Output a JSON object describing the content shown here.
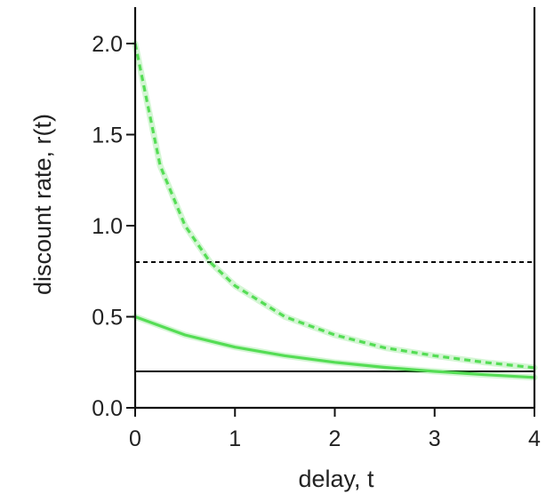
{
  "chart_data": {
    "type": "line",
    "title": "",
    "xlabel": "delay, t",
    "ylabel": "discount rate, r(t)",
    "xlim": [
      0,
      4
    ],
    "ylim": [
      0,
      2.2
    ],
    "xticks": [
      0,
      1,
      2,
      3,
      4
    ],
    "xtick_labels": [
      "0",
      "1",
      "2",
      "3",
      "4"
    ],
    "yticks": [
      0,
      0.5,
      1.0,
      1.5,
      2.0
    ],
    "ytick_labels": [
      "0.0",
      "0.5",
      "1.0",
      "1.5",
      "2.0"
    ],
    "grid": false,
    "legend": "none",
    "series": [
      {
        "style": "dashed",
        "color": "#000000",
        "x": [
          0,
          4
        ],
        "y": [
          0.8,
          0.8
        ]
      },
      {
        "style": "solid",
        "color": "#000000",
        "x": [
          0,
          4
        ],
        "y": [
          0.2,
          0.2
        ]
      },
      {
        "style": "dashed",
        "color": "#55dd55",
        "x": [
          0,
          0.25,
          0.5,
          0.75,
          1,
          1.5,
          2,
          2.5,
          3,
          3.5,
          4
        ],
        "y": [
          2.0,
          1.33,
          1.0,
          0.8,
          0.67,
          0.5,
          0.4,
          0.33,
          0.286,
          0.25,
          0.22
        ]
      },
      {
        "style": "solid",
        "color": "#55dd55",
        "x": [
          0,
          0.5,
          1,
          1.5,
          2,
          2.5,
          3,
          3.5,
          4
        ],
        "y": [
          0.5,
          0.4,
          0.333,
          0.286,
          0.25,
          0.222,
          0.2,
          0.182,
          0.167
        ]
      }
    ]
  }
}
